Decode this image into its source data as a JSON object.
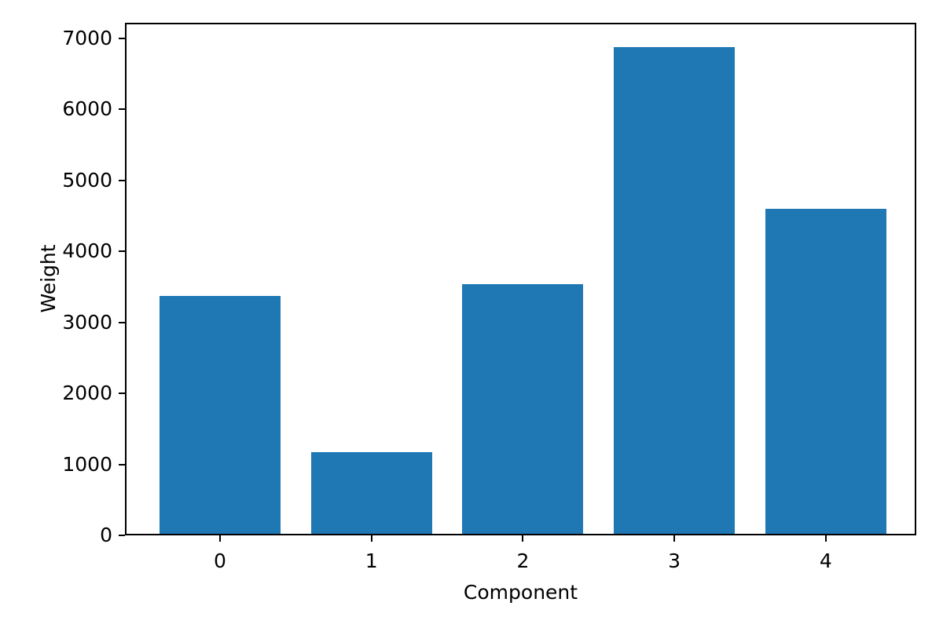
{
  "chart_data": {
    "type": "bar",
    "categories": [
      "0",
      "1",
      "2",
      "3",
      "4"
    ],
    "values": [
      3350,
      1150,
      3520,
      6860,
      4580
    ],
    "title": "",
    "xlabel": "Component",
    "ylabel": "Weight",
    "ylim": [
      0,
      7220
    ],
    "yticks": [
      0,
      1000,
      2000,
      3000,
      4000,
      5000,
      6000,
      7000
    ],
    "bar_color": "#1f77b4",
    "background_color": "#ffffff",
    "grid": false,
    "legend": "none"
  }
}
